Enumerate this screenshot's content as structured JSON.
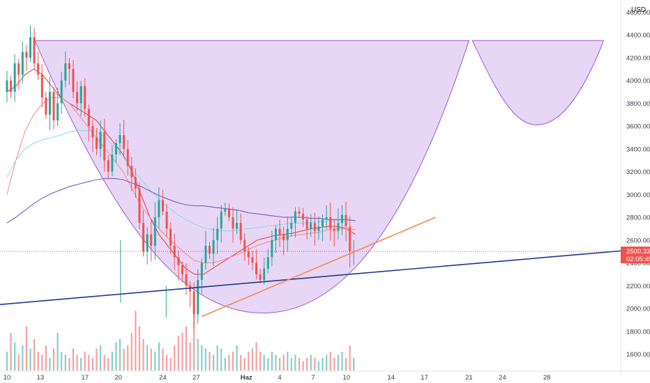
{
  "chart_data": {
    "type": "candlestick",
    "currency": "USD",
    "y_range": [
      1480,
      4680
    ],
    "y_ticks": [
      1600,
      1800,
      2000,
      2200,
      2400,
      2600,
      2800,
      3000,
      3200,
      3400,
      3600,
      3800,
      4000,
      4200,
      4400,
      4600
    ],
    "y_tick_labels": [
      "1600.00",
      "1800.00",
      "2000.00",
      "2200.00",
      "2400.00",
      "2600.00",
      "2800.00",
      "3000.00",
      "3200.00",
      "3400.00",
      "3600.00",
      "3800.00",
      "4000.00",
      "4200.00",
      "4400.00",
      "4600.00"
    ],
    "x_range": [
      0,
      63
    ],
    "x_ticks": [
      {
        "pos": 0,
        "label": "10"
      },
      {
        "pos": 3,
        "label": "13"
      },
      {
        "pos": 7,
        "label": "17"
      },
      {
        "pos": 10,
        "label": "20"
      },
      {
        "pos": 14,
        "label": "24"
      },
      {
        "pos": 17,
        "label": "27"
      },
      {
        "pos": 21.5,
        "label": "Haz"
      },
      {
        "pos": 24.5,
        "label": "4"
      },
      {
        "pos": 27.5,
        "label": "7"
      },
      {
        "pos": 30.5,
        "label": "10"
      },
      {
        "pos": 34.5,
        "label": "14"
      },
      {
        "pos": 37.5,
        "label": "17"
      },
      {
        "pos": 41.5,
        "label": "21"
      },
      {
        "pos": 44.5,
        "label": "24"
      },
      {
        "pos": 48.5,
        "label": "28"
      }
    ],
    "last_price": "2500.33",
    "countdown": "02:05:45",
    "candles_per_day": 4,
    "candle_close_path": [
      4000,
      3900,
      4150,
      4050,
      4250,
      4200,
      4380,
      4150,
      4050,
      3850,
      3700,
      3900,
      3650,
      3800,
      4000,
      4150,
      4100,
      3900,
      3800,
      3950,
      3750,
      3600,
      3500,
      3400,
      3550,
      3300,
      3200,
      3350,
      3450,
      3520,
      3400,
      3250,
      3150,
      3050,
      2750,
      2500,
      2650,
      2550,
      2800,
      2950,
      2850,
      2700,
      2550,
      2450,
      2380,
      2300,
      2200,
      2150,
      1950,
      2250,
      2400,
      2550,
      2480,
      2600,
      2700,
      2850,
      2880,
      2800,
      2700,
      2750,
      2600,
      2500,
      2450,
      2400,
      2300,
      2250,
      2350,
      2450,
      2600,
      2700,
      2650,
      2600,
      2700,
      2750,
      2850,
      2830,
      2780,
      2700,
      2750,
      2680,
      2720,
      2780,
      2800,
      2700,
      2680,
      2750,
      2820,
      2720,
      2500,
      2500
    ],
    "volume_path": [
      30,
      60,
      45,
      25,
      40,
      70,
      35,
      50,
      30,
      25,
      40,
      20,
      35,
      60,
      30,
      25,
      20,
      35,
      25,
      20,
      30,
      25,
      20,
      35,
      40,
      25,
      20,
      30,
      45,
      50,
      35,
      40,
      60,
      95,
      70,
      50,
      40,
      35,
      30,
      45,
      35,
      25,
      20,
      40,
      55,
      60,
      70,
      45,
      100,
      50,
      40,
      35,
      30,
      25,
      40,
      35,
      20,
      25,
      30,
      40,
      25,
      20,
      30,
      35,
      45,
      30,
      25,
      20,
      30,
      25,
      20,
      25,
      30,
      20,
      25,
      20,
      15,
      20,
      25,
      20,
      15,
      20,
      25,
      30,
      20,
      25,
      30,
      20,
      40,
      20
    ],
    "moving_averages": [
      {
        "color": "#e53935",
        "values": [
          3900,
          3950,
          4050,
          4100,
          4050,
          3950,
          3850,
          3800,
          3750,
          3700,
          3650,
          3550,
          3450,
          3350,
          3200,
          3000,
          2800,
          2650,
          2550,
          2450,
          2350,
          2300,
          2300,
          2350,
          2400,
          2450,
          2500,
          2550,
          2600,
          2620,
          2640,
          2650,
          2660,
          2680,
          2700,
          2710,
          2720,
          2720,
          2700,
          2650
        ]
      },
      {
        "color": "#f28b82",
        "values": [
          3000,
          3300,
          3550,
          3700,
          3800,
          3850,
          3850,
          3800,
          3700,
          3600,
          3500,
          3400,
          3300,
          3200,
          3050,
          2900,
          2800,
          2700,
          2620,
          2550,
          2480,
          2420,
          2400,
          2400,
          2420,
          2450,
          2480,
          2520,
          2550,
          2580,
          2600,
          2620,
          2640,
          2650,
          2660,
          2670,
          2690,
          2700,
          2700,
          2690
        ]
      },
      {
        "color": "#80deea",
        "values": [
          3150,
          3300,
          3400,
          3450,
          3480,
          3500,
          3520,
          3550,
          3560,
          3560,
          3550,
          3500,
          3420,
          3330,
          3230,
          3130,
          3040,
          2960,
          2890,
          2830,
          2780,
          2740,
          2710,
          2690,
          2680,
          2680,
          2690,
          2700,
          2710,
          2720,
          2730,
          2740,
          2750,
          2750,
          2755,
          2760,
          2765,
          2770,
          2770,
          2770
        ]
      },
      {
        "color": "#7e57c2",
        "values": [
          2750,
          2800,
          2860,
          2920,
          2970,
          3010,
          3040,
          3070,
          3090,
          3110,
          3130,
          3140,
          3140,
          3130,
          3100,
          3070,
          3030,
          2990,
          2960,
          2930,
          2910,
          2900,
          2900,
          2890,
          2880,
          2870,
          2860,
          2840,
          2830,
          2820,
          2810,
          2800,
          2800,
          2800,
          2790,
          2790,
          2780,
          2780,
          2780,
          2770
        ]
      }
    ],
    "drawings": {
      "cup_fill": "#e4cff5",
      "cup_stroke": "#9c5cc4",
      "trendline_navy": {
        "color": "#1e3a8a",
        "from": [
          0,
          2035
        ],
        "to": [
          64,
          2580
        ]
      },
      "trendline_orange": {
        "color": "#f58a4c",
        "from": [
          17.5,
          1930
        ],
        "to": [
          38.5,
          2800
        ]
      },
      "price_line_color": "#e53935"
    }
  }
}
